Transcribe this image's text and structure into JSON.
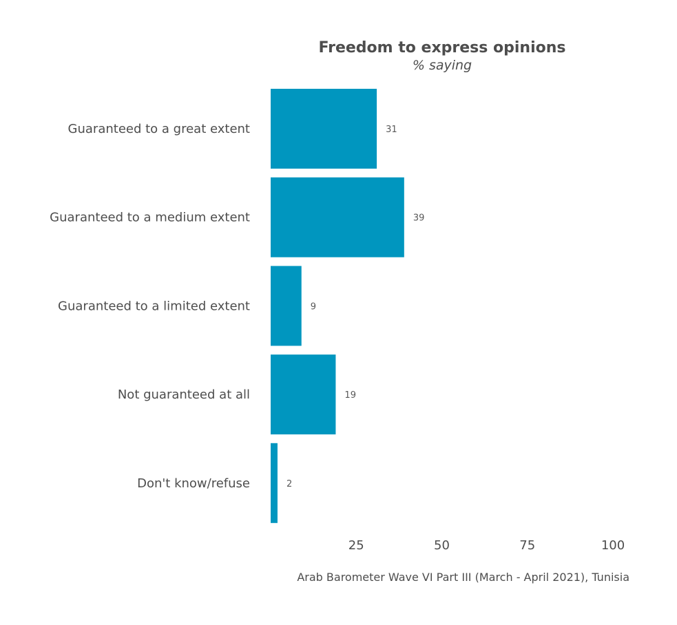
{
  "chart_data": {
    "type": "bar",
    "orientation": "horizontal",
    "title": "Freedom to express opinions",
    "subtitle": "% saying",
    "categories": [
      "Guaranteed to a great extent",
      "Guaranteed to a medium extent",
      "Guaranteed to a limited extent",
      "Not guaranteed at all",
      "Don't know/refuse"
    ],
    "values": [
      31,
      39,
      9,
      19,
      2
    ],
    "xlim": [
      0,
      100
    ],
    "xticks": [
      25,
      50,
      75,
      100
    ],
    "caption": "Arab Barometer Wave VI Part III (March - April 2021), Tunisia",
    "grid": false,
    "legend": "none",
    "colors": {
      "bar": "#0096BF",
      "title": "#4D4D4D",
      "text": "#4D4D4D",
      "value_label": "#595959"
    }
  }
}
